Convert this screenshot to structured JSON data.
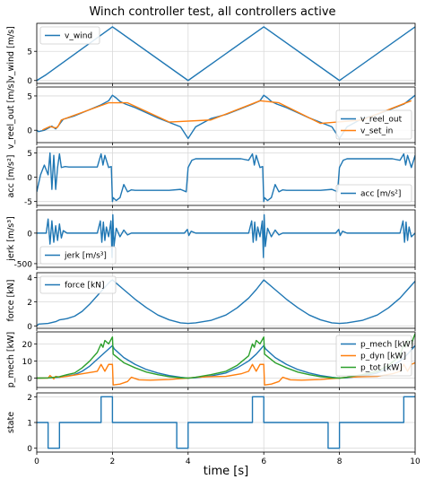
{
  "chart_data": {
    "type": "line",
    "title": "Winch controller test, all controllers active",
    "xlabel": "time [s]",
    "xlim": [
      0,
      10
    ],
    "xticks": [
      0,
      2,
      4,
      6,
      8,
      10
    ],
    "grid": true,
    "colors": {
      "blue": "#1f77b4",
      "orange": "#ff7f0e",
      "green": "#2ca02c"
    },
    "panels": [
      {
        "ylabel": "v_wind [m/s]",
        "ylim": [
          -0.5,
          9.8
        ],
        "yticks": [
          0,
          5
        ],
        "legend": "top-left",
        "series": [
          {
            "name": "v_wind",
            "color": "blue",
            "x": [
              0,
              0.25,
              2,
              4,
              6,
              8,
              10
            ],
            "y": [
              0,
              1.0,
              9.2,
              0,
              9.2,
              0,
              9.2
            ]
          }
        ]
      },
      {
        "ylabel": "v_reel_out [m/s]",
        "ylim": [
          -1.8,
          6.3
        ],
        "yticks": [
          0,
          5
        ],
        "legend": "bottom-right",
        "series": [
          {
            "name": "v_reel_out",
            "color": "blue",
            "x": [
              0,
              0.05,
              0.2,
              0.4,
              0.5,
              0.55,
              0.63,
              0.7,
              1.0,
              1.7,
              1.9,
              2.0,
              2.1,
              2.2,
              2.35,
              2.6,
              3.2,
              3.8,
              4.0,
              4.2,
              4.6,
              5.0,
              5.7,
              5.9,
              6.0,
              6.1,
              6.2,
              6.35,
              6.6,
              7.2,
              7.8,
              8.0,
              8.2,
              8.6,
              9.0,
              9.7,
              10.0
            ],
            "y": [
              0,
              -0.2,
              0,
              0.6,
              0.2,
              0.5,
              1.1,
              1.6,
              2.1,
              3.7,
              4.3,
              5.1,
              4.7,
              4.2,
              3.8,
              3.3,
              1.8,
              0.5,
              -1.2,
              0.5,
              1.7,
              2.3,
              3.8,
              4.3,
              5.1,
              4.7,
              4.2,
              3.8,
              3.3,
              1.8,
              0.5,
              -1.2,
              0.5,
              1.7,
              2.3,
              3.8,
              5.1
            ]
          },
          {
            "name": "v_set_in",
            "color": "orange",
            "x": [
              0.15,
              0.35,
              0.5,
              0.55,
              0.65,
              1.9,
              2.4,
              3.5,
              4.6,
              5.9,
              6.4,
              7.5,
              8.6,
              9.9
            ],
            "y": [
              0.05,
              0.55,
              0.35,
              0.45,
              1.5,
              4.0,
              4.0,
              1.2,
              1.5,
              4.3,
              4.0,
              1.0,
              1.5,
              4.3
            ]
          }
        ]
      },
      {
        "ylabel": "acc [m/s²]",
        "ylim": [
          -5.8,
          6.2
        ],
        "yticks": [
          -5,
          0,
          5
        ],
        "legend": "bottom-right",
        "series": [
          {
            "name": "acc [m/s²]",
            "color": "blue",
            "x": [
              0,
              0.1,
              0.2,
              0.3,
              0.35,
              0.4,
              0.45,
              0.5,
              0.55,
              0.6,
              0.65,
              0.75,
              0.85,
              1.0,
              1.6,
              1.7,
              1.75,
              1.8,
              1.9,
              1.97,
              2.0,
              2.02,
              2.1,
              2.2,
              2.3,
              2.4,
              2.5,
              2.6,
              2.8,
              3.5,
              3.8,
              3.95,
              4.0,
              4.1,
              4.2,
              4.4,
              5.4,
              5.6,
              5.7,
              5.75,
              5.8,
              5.9,
              5.97,
              6.0,
              6.02,
              6.1,
              6.2,
              6.3,
              6.4,
              6.5,
              6.6,
              6.8,
              7.5,
              7.8,
              7.95,
              8.0,
              8.1,
              8.2,
              8.4,
              9.4,
              9.6,
              9.7,
              9.75,
              9.8,
              9.9,
              10.0
            ],
            "y": [
              -3.0,
              0.5,
              2.5,
              0.5,
              5.0,
              -2.5,
              4.5,
              -2.5,
              2.0,
              4.8,
              2.0,
              2.2,
              2.1,
              2.1,
              2.1,
              4.8,
              2.5,
              4.5,
              2.0,
              2.2,
              -5.0,
              -4.2,
              -4.8,
              -4.2,
              -1.5,
              -3.0,
              -2.6,
              -2.7,
              -2.7,
              -2.7,
              -2.5,
              -3.0,
              2.0,
              3.5,
              3.8,
              3.8,
              3.8,
              3.5,
              4.8,
              2.5,
              4.5,
              2.0,
              2.2,
              -5.0,
              -4.2,
              -4.8,
              -4.2,
              -1.5,
              -3.0,
              -2.6,
              -2.7,
              -2.7,
              -2.7,
              -2.5,
              -3.0,
              2.0,
              3.5,
              3.8,
              3.8,
              3.8,
              3.5,
              4.8,
              2.5,
              4.5,
              2.0,
              4.5
            ]
          }
        ]
      },
      {
        "ylabel": "jerk [m/s³]",
        "ylim": [
          -560,
          380
        ],
        "yticks": [
          -500,
          0
        ],
        "legend": "bottom-left",
        "series": [
          {
            "name": "jerk [m/s³]",
            "color": "blue",
            "x": [
              0,
              0.25,
              0.3,
              0.35,
              0.4,
              0.45,
              0.5,
              0.55,
              0.6,
              0.65,
              0.7,
              0.8,
              1.6,
              1.68,
              1.72,
              1.76,
              1.8,
              1.84,
              1.9,
              1.96,
              1.99,
              2.01,
              2.04,
              2.1,
              2.2,
              2.3,
              2.4,
              2.5,
              3.9,
              3.98,
              4.02,
              4.08,
              4.2,
              5.6,
              5.68,
              5.72,
              5.76,
              5.8,
              5.84,
              5.9,
              5.96,
              5.99,
              6.01,
              6.04,
              6.1,
              6.2,
              6.3,
              6.4,
              6.5,
              7.9,
              7.98,
              8.02,
              8.08,
              8.2,
              9.6,
              9.68,
              9.72,
              9.76,
              9.8,
              9.84,
              9.9,
              10.0
            ],
            "y": [
              0,
              0,
              230,
              -180,
              200,
              -150,
              120,
              -120,
              150,
              -80,
              40,
              0,
              0,
              200,
              -150,
              180,
              -120,
              100,
              -60,
              200,
              -400,
              300,
              -220,
              80,
              -60,
              50,
              -30,
              0,
              0,
              60,
              -40,
              30,
              0,
              0,
              200,
              -150,
              180,
              -120,
              100,
              -60,
              200,
              -400,
              300,
              -220,
              80,
              -60,
              50,
              -30,
              0,
              0,
              60,
              -40,
              30,
              0,
              0,
              200,
              -150,
              180,
              -120,
              100,
              -60,
              0
            ]
          }
        ]
      },
      {
        "ylabel": "force [kN]",
        "ylim": [
          -0.2,
          4.4
        ],
        "yticks": [
          0,
          2,
          4
        ],
        "legend": "top-left",
        "series": [
          {
            "name": "force [kN]",
            "color": "blue",
            "x": [
              0,
              0.05,
              0.3,
              0.5,
              0.6,
              0.7,
              0.8,
              1.0,
              1.2,
              1.4,
              1.6,
              1.8,
              1.95,
              2.0,
              2.3,
              2.6,
              2.9,
              3.2,
              3.5,
              3.8,
              4.0,
              4.2,
              4.6,
              5.0,
              5.3,
              5.6,
              5.8,
              5.95,
              6.0,
              6.3,
              6.6,
              6.9,
              7.2,
              7.5,
              7.8,
              8.0,
              8.2,
              8.6,
              9.0,
              9.3,
              9.6,
              9.8,
              10.0
            ],
            "y": [
              0,
              0.15,
              0.2,
              0.35,
              0.5,
              0.55,
              0.6,
              0.8,
              1.2,
              1.8,
              2.5,
              3.2,
              3.7,
              3.8,
              3.0,
              2.2,
              1.5,
              0.9,
              0.5,
              0.25,
              0.2,
              0.25,
              0.45,
              0.9,
              1.5,
              2.3,
              3.0,
              3.6,
              3.8,
              3.0,
              2.2,
              1.5,
              0.9,
              0.5,
              0.25,
              0.2,
              0.25,
              0.45,
              0.9,
              1.5,
              2.3,
              3.0,
              3.7
            ]
          }
        ]
      },
      {
        "ylabel": "p_mech [kW]",
        "ylim": [
          -5.5,
          27
        ],
        "yticks": [
          0,
          10,
          20
        ],
        "legend": "top-right",
        "series": [
          {
            "name": "p_mech [kW]",
            "color": "blue",
            "x": [
              0,
              0.3,
              0.6,
              0.8,
              1.0,
              1.2,
              1.4,
              1.6,
              1.8,
              2.0,
              2.05,
              2.3,
              2.6,
              2.9,
              3.2,
              3.5,
              3.8,
              4.0,
              4.2,
              4.6,
              5.0,
              5.3,
              5.6,
              5.8,
              6.0,
              6.05,
              6.3,
              6.6,
              6.9,
              7.2,
              7.5,
              7.8,
              8.0,
              8.2,
              8.6,
              9.0,
              9.3,
              9.6,
              9.8,
              10.0
            ],
            "y": [
              0,
              0.1,
              0.5,
              1.2,
              2.0,
              4.0,
              7.0,
              11.0,
              15.0,
              19.0,
              17.0,
              12.0,
              8.0,
              5.0,
              3.0,
              1.5,
              0.5,
              0,
              0.2,
              1.2,
              3.0,
              6.0,
              10.0,
              14.0,
              19.0,
              17.0,
              12.0,
              8.0,
              5.0,
              3.0,
              1.5,
              0.5,
              0,
              0.2,
              1.2,
              3.0,
              6.0,
              10.0,
              14.0,
              19.0
            ]
          },
          {
            "name": "p_dyn [kW]",
            "color": "orange",
            "x": [
              0,
              0.3,
              0.35,
              0.45,
              0.5,
              0.6,
              0.8,
              1.2,
              1.6,
              1.7,
              1.8,
              1.9,
              2.0,
              2.02,
              2.2,
              2.4,
              2.5,
              2.7,
              3.0,
              3.5,
              3.8,
              4.0,
              4.2,
              4.6,
              5.0,
              5.4,
              5.6,
              5.7,
              5.8,
              5.9,
              6.0,
              6.02,
              6.2,
              6.4,
              6.5,
              6.7,
              7.0,
              7.5,
              7.8,
              8.0,
              8.2,
              8.6,
              9.0,
              9.4,
              9.6,
              9.7,
              9.8,
              9.9,
              10.0
            ],
            "y": [
              0,
              0,
              1.5,
              -0.5,
              1.0,
              0.5,
              1.0,
              2.5,
              4.0,
              8.0,
              4.0,
              8.0,
              8.0,
              -4.0,
              -3.5,
              -2.0,
              0.5,
              -1.0,
              -1.2,
              -0.8,
              -0.3,
              0,
              0.5,
              0.8,
              1.0,
              2.5,
              4.0,
              8.0,
              4.0,
              8.0,
              8.0,
              -4.0,
              -3.5,
              -2.0,
              0.5,
              -1.0,
              -1.2,
              -0.8,
              -0.3,
              0,
              0.5,
              0.8,
              1.0,
              2.5,
              4.0,
              8.0,
              4.0,
              8.0,
              9.0
            ]
          },
          {
            "name": "p_tot [kW]",
            "color": "green",
            "x": [
              0,
              0.3,
              0.6,
              0.8,
              1.0,
              1.2,
              1.4,
              1.6,
              1.7,
              1.75,
              1.8,
              1.9,
              2.0,
              2.02,
              2.3,
              2.6,
              2.9,
              3.2,
              3.5,
              3.8,
              4.0,
              4.2,
              4.6,
              5.0,
              5.3,
              5.6,
              5.7,
              5.75,
              5.8,
              5.9,
              6.0,
              6.02,
              6.3,
              6.6,
              6.9,
              7.2,
              7.5,
              7.8,
              8.0,
              8.2,
              8.6,
              9.0,
              9.3,
              9.6,
              9.7,
              9.75,
              9.8,
              9.9,
              10.0
            ],
            "y": [
              0,
              0.1,
              0.8,
              2.0,
              3.0,
              6.0,
              10.0,
              15.0,
              20.0,
              18.0,
              22.0,
              20.0,
              24.0,
              14.0,
              9.0,
              6.0,
              3.5,
              2.0,
              0.8,
              0.2,
              0,
              0.5,
              2.0,
              4.0,
              7.5,
              13.0,
              20.0,
              18.0,
              22.0,
              20.0,
              24.0,
              14.0,
              9.0,
              6.0,
              3.5,
              2.0,
              0.8,
              0.2,
              0,
              0.5,
              2.0,
              4.0,
              7.5,
              13.0,
              20.0,
              18.0,
              22.0,
              20.0,
              26.0
            ]
          }
        ]
      },
      {
        "ylabel": "state",
        "ylim": [
          -0.15,
          2.15
        ],
        "yticks": [
          0,
          1,
          2
        ],
        "legend": "none",
        "series": [
          {
            "name": "",
            "color": "blue",
            "x": [
              0,
              0.3,
              0.3,
              0.6,
              0.6,
              1.7,
              1.7,
              2.0,
              2.0,
              3.7,
              3.7,
              4.0,
              4.0,
              5.7,
              5.7,
              6.0,
              6.0,
              7.7,
              7.7,
              8.0,
              8.0,
              9.7,
              9.7,
              10.0
            ],
            "y": [
              1,
              1,
              0,
              0,
              1,
              1,
              2,
              2,
              1,
              1,
              0,
              0,
              1,
              1,
              2,
              2,
              1,
              1,
              0,
              0,
              1,
              1,
              2,
              2
            ]
          }
        ]
      }
    ]
  }
}
